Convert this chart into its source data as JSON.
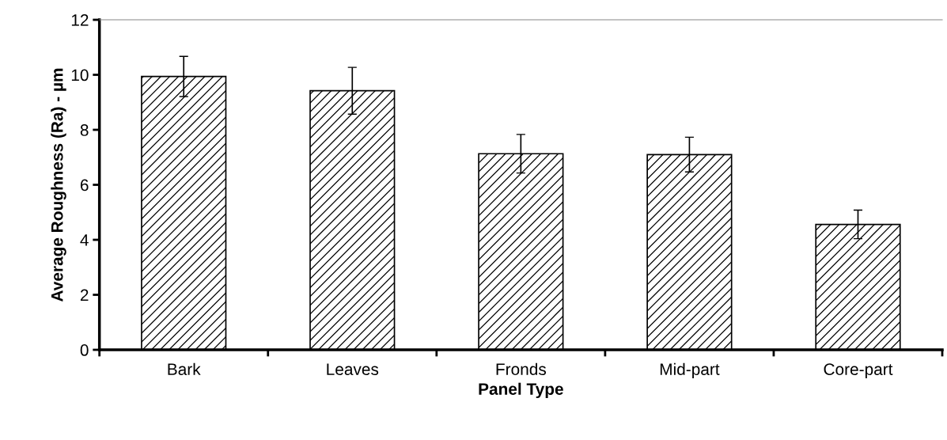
{
  "chart_data": {
    "type": "bar",
    "xlabel": "Panel Type",
    "ylabel": "Average Roughness (Ra) - µm",
    "categories": [
      "Bark",
      "Leaves",
      "Fronds",
      "Mid-part",
      "Core-part"
    ],
    "values": [
      9.94,
      9.42,
      7.13,
      7.1,
      4.56
    ],
    "errors": [
      0.73,
      0.85,
      0.7,
      0.63,
      0.52
    ],
    "color": "#000000",
    "ylim": [
      0,
      12
    ],
    "yticks": [
      0,
      2,
      4,
      6,
      8,
      10,
      12
    ],
    "grid": false,
    "legend": false
  }
}
